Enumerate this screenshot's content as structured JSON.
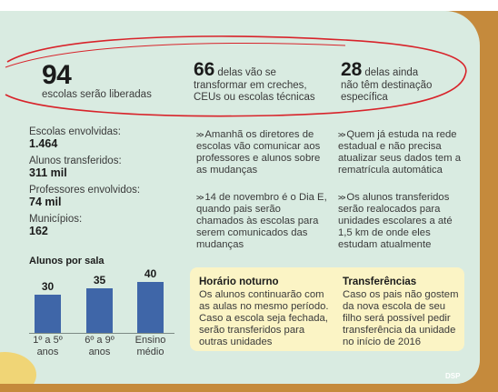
{
  "top_stats": [
    {
      "number": "94",
      "text": "escolas serão liberadas"
    },
    {
      "number": "66",
      "text_lines": [
        "delas vão se",
        "transformar em creches,",
        "CEUs ou escolas técnicas"
      ]
    },
    {
      "number": "28",
      "text_lines": [
        "delas ainda",
        "não têm destinação",
        "específica"
      ]
    }
  ],
  "left_stats": [
    {
      "label": "Escolas envolvidas:",
      "value": "1.464"
    },
    {
      "label": "Alunos transferidos:",
      "value": "311 mil"
    },
    {
      "label": "Professores envolvidos:",
      "value": "74 mil"
    },
    {
      "label": "Municípios:",
      "value": "162"
    }
  ],
  "paragraphs": [
    {
      "arrow": ">>",
      "lines": [
        "Amanhã os diretores de",
        "escolas vão comunicar aos",
        "professores e alunos sobre",
        "as mudanças"
      ]
    },
    {
      "arrow": ">>",
      "lines": [
        "14 de novembro é o Dia E,",
        "quando pais serão",
        "chamados às escolas para",
        "serem comunicados das",
        "mudanças"
      ]
    },
    {
      "arrow": ">>",
      "lines": [
        "Quem já estuda na rede",
        "estadual e não precisa",
        "atualizar seus dados tem a",
        "rematrícula automática"
      ]
    },
    {
      "arrow": ">>",
      "lines": [
        "Os alunos transferidos",
        "serão realocados para",
        "unidades escolares a até",
        "1,5 km de onde eles",
        "estudam atualmente"
      ]
    }
  ],
  "chart_data": {
    "type": "bar",
    "title": "Alunos por sala",
    "categories": [
      [
        "1º a 5º",
        "anos"
      ],
      [
        "6º a 9º",
        "anos"
      ],
      [
        "Ensino",
        "médio"
      ]
    ],
    "values": [
      30,
      35,
      40
    ],
    "color": "#3f66a8"
  },
  "info_box": {
    "left": {
      "title": "Horário noturno",
      "lines": [
        " Os alunos continuarão com",
        "as aulas no mesmo período.",
        "Caso a escola seja fechada,",
        "serão transferidos para",
        "outras unidades"
      ]
    },
    "right": {
      "title": "Transferências",
      "lines": [
        "Caso os pais não gostem",
        "da nova escola de seu",
        "filho será possível pedir",
        "transferência da unidade",
        "no início de 2016"
      ]
    }
  },
  "credit": "DSP",
  "colors": {
    "background": "#d9ebe1",
    "frame": "#c58a3c",
    "ellipse": "#d8232a",
    "box": "#fbf4c5"
  }
}
